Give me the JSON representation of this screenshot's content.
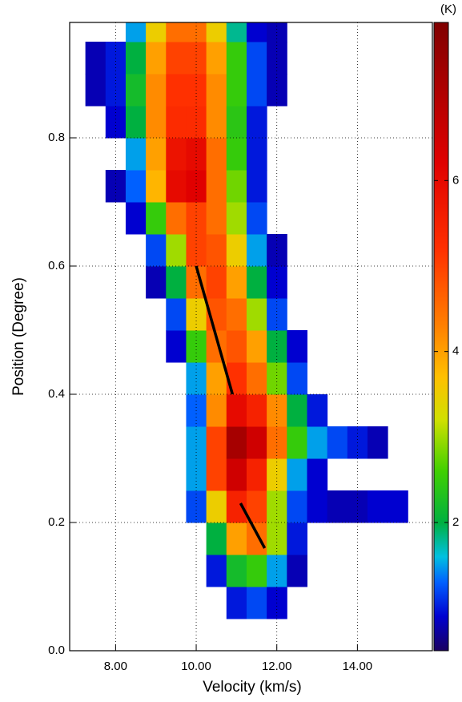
{
  "chart_data": {
    "type": "heatmap",
    "xlabel": "Velocity (km/s)",
    "ylabel": "Position (Degree)",
    "colorbar_label": "(K)",
    "xlim": [
      6.86,
      15.86
    ],
    "ylim": [
      0,
      0.98
    ],
    "xticks": [
      {
        "value": 8,
        "label": "8.00"
      },
      {
        "value": 10,
        "label": "10.00"
      },
      {
        "value": 12,
        "label": "12.00"
      },
      {
        "value": 14,
        "label": "14.00"
      }
    ],
    "yticks": [
      {
        "value": 0,
        "label": "0.0"
      },
      0.2,
      0.4,
      0.6,
      0.8
    ],
    "grid": true,
    "zlim": [
      0.5,
      7.85
    ],
    "zticks": [
      2,
      4,
      6
    ],
    "colormap": [
      [
        0.5,
        "#1a0060"
      ],
      [
        0.9,
        "#0000d0"
      ],
      [
        1.3,
        "#0060ff"
      ],
      [
        1.6,
        "#00c0e0"
      ],
      [
        2.0,
        "#00b040"
      ],
      [
        2.6,
        "#40d000"
      ],
      [
        3.2,
        "#d0e000"
      ],
      [
        3.7,
        "#ffc000"
      ],
      [
        4.3,
        "#ff8000"
      ],
      [
        5.2,
        "#ff3000"
      ],
      [
        6.2,
        "#e00000"
      ],
      [
        7.85,
        "#800000"
      ]
    ],
    "x": [
      7.0,
      7.5,
      8.0,
      8.5,
      9.0,
      9.5,
      10.0,
      10.5,
      11.0,
      11.5,
      12.0,
      12.5,
      13.0,
      13.5,
      14.0,
      14.5,
      15.0,
      15.5
    ],
    "y": [
      0.025,
      0.075,
      0.125,
      0.175,
      0.225,
      0.275,
      0.325,
      0.375,
      0.425,
      0.475,
      0.525,
      0.575,
      0.625,
      0.675,
      0.725,
      0.775,
      0.825,
      0.875,
      0.925,
      0.975
    ],
    "z": [
      [
        null,
        null,
        null,
        null,
        null,
        null,
        null,
        null,
        null,
        null,
        null,
        null,
        null,
        null,
        null,
        null,
        null,
        null
      ],
      [
        null,
        null,
        null,
        null,
        null,
        null,
        null,
        null,
        1.0,
        1.2,
        0.9,
        null,
        null,
        null,
        null,
        null,
        null,
        null
      ],
      [
        null,
        null,
        null,
        null,
        null,
        null,
        null,
        1.0,
        2.2,
        2.5,
        1.5,
        0.8,
        null,
        null,
        null,
        null,
        null,
        null
      ],
      [
        null,
        null,
        null,
        null,
        null,
        null,
        null,
        2.0,
        4.0,
        4.5,
        3.0,
        1.0,
        null,
        null,
        null,
        null,
        null,
        null
      ],
      [
        null,
        null,
        null,
        null,
        null,
        null,
        1.2,
        3.5,
        5.5,
        5.0,
        3.0,
        1.2,
        0.9,
        0.8,
        0.8,
        0.9,
        0.9,
        null
      ],
      [
        null,
        null,
        null,
        null,
        null,
        null,
        1.5,
        5.0,
        6.5,
        5.5,
        3.5,
        1.5,
        0.9,
        null,
        null,
        null,
        null,
        null
      ],
      [
        null,
        null,
        null,
        null,
        null,
        null,
        1.5,
        5.0,
        7.2,
        6.5,
        4.5,
        2.5,
        1.5,
        1.2,
        1.0,
        0.8,
        null,
        null
      ],
      [
        null,
        null,
        null,
        null,
        null,
        null,
        1.3,
        4.2,
        6.0,
        5.5,
        4.2,
        2.0,
        1.0,
        null,
        null,
        null,
        null,
        null
      ],
      [
        null,
        null,
        null,
        null,
        null,
        null,
        1.5,
        4.0,
        5.2,
        4.5,
        2.8,
        1.2,
        null,
        null,
        null,
        null,
        null,
        null
      ],
      [
        null,
        null,
        null,
        null,
        null,
        0.9,
        2.5,
        4.5,
        4.8,
        4.0,
        2.0,
        0.9,
        null,
        null,
        null,
        null,
        null,
        null
      ],
      [
        null,
        null,
        null,
        null,
        null,
        1.2,
        3.5,
        4.8,
        4.5,
        3.0,
        1.2,
        null,
        null,
        null,
        null,
        null,
        null,
        null
      ],
      [
        null,
        null,
        null,
        null,
        0.8,
        2.0,
        4.5,
        5.0,
        4.0,
        2.0,
        0.9,
        null,
        null,
        null,
        null,
        null,
        null,
        null
      ],
      [
        null,
        null,
        null,
        null,
        1.2,
        3.0,
        5.0,
        4.8,
        3.5,
        1.5,
        0.8,
        null,
        null,
        null,
        null,
        null,
        null,
        null
      ],
      [
        null,
        null,
        null,
        0.9,
        2.5,
        4.5,
        5.0,
        4.5,
        3.0,
        1.2,
        null,
        null,
        null,
        null,
        null,
        null,
        null,
        null
      ],
      [
        null,
        null,
        0.8,
        1.3,
        3.8,
        6.0,
        6.2,
        4.5,
        2.8,
        1.0,
        null,
        null,
        null,
        null,
        null,
        null,
        null,
        null
      ],
      [
        null,
        null,
        null,
        1.5,
        4.0,
        5.8,
        6.0,
        4.5,
        2.5,
        1.0,
        null,
        null,
        null,
        null,
        null,
        null,
        null,
        null
      ],
      [
        null,
        null,
        0.9,
        2.0,
        4.2,
        5.3,
        5.3,
        4.2,
        2.4,
        1.0,
        null,
        null,
        null,
        null,
        null,
        null,
        null,
        null
      ],
      [
        null,
        0.8,
        1.0,
        2.2,
        4.2,
        5.2,
        5.2,
        4.2,
        2.5,
        1.2,
        0.8,
        null,
        null,
        null,
        null,
        null,
        null,
        null
      ],
      [
        null,
        0.8,
        1.0,
        2.0,
        4.0,
        5.0,
        5.0,
        4.0,
        2.5,
        1.2,
        0.8,
        null,
        null,
        null,
        null,
        null,
        null,
        null
      ],
      [
        null,
        null,
        null,
        1.5,
        3.5,
        4.5,
        4.5,
        3.5,
        1.8,
        0.9,
        0.8,
        null,
        null,
        null,
        null,
        null,
        null,
        null
      ]
    ],
    "lines": [
      {
        "x": [
          10.0,
          10.9
        ],
        "y": [
          0.6,
          0.4
        ]
      },
      {
        "x": [
          11.1,
          11.7
        ],
        "y": [
          0.23,
          0.16
        ]
      }
    ]
  }
}
